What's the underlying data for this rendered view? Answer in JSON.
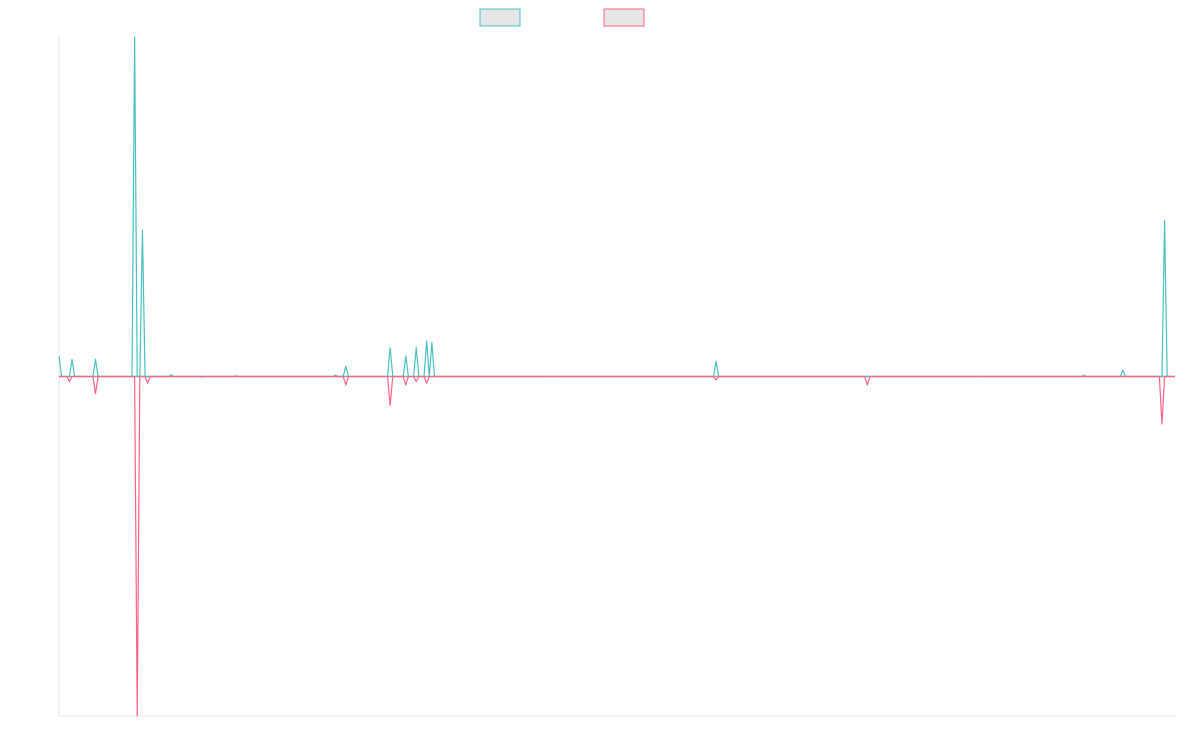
{
  "chart_data": {
    "type": "line",
    "title": "",
    "xlabel": "",
    "ylabel": "",
    "grid": false,
    "legend": "top-center",
    "x": [
      0,
      1,
      2,
      3,
      4,
      5,
      6,
      7,
      8,
      9,
      10,
      11,
      12,
      13,
      14,
      15,
      16,
      17,
      18,
      19,
      20,
      21,
      22,
      23,
      24,
      25,
      26,
      27,
      28,
      29,
      30,
      31,
      32,
      33,
      34,
      35,
      36,
      37,
      38,
      39,
      40,
      41,
      42,
      43,
      44,
      45,
      46,
      47,
      48,
      49,
      50,
      51,
      52,
      53,
      54,
      55,
      56,
      57,
      58,
      59,
      60,
      61,
      62,
      63,
      64,
      65,
      66,
      67,
      68,
      69,
      70,
      71,
      72,
      73,
      74,
      75,
      76,
      77,
      78,
      79,
      80,
      81,
      82,
      83,
      84,
      85,
      86,
      87,
      88,
      89,
      90,
      91,
      92,
      93,
      94,
      95,
      96,
      97,
      98,
      99,
      100,
      101,
      102,
      103,
      104,
      105,
      106,
      107,
      108,
      109,
      110,
      111,
      112,
      113,
      114,
      115,
      116,
      117,
      118,
      119,
      120,
      121,
      122,
      123,
      124,
      125,
      126,
      127,
      128,
      129,
      130,
      131,
      132,
      133,
      134,
      135,
      136,
      137,
      138,
      139,
      140,
      141,
      142,
      143,
      144,
      145,
      146,
      147,
      148,
      149,
      150,
      151,
      152,
      153,
      154,
      155,
      156,
      157,
      158,
      159,
      160,
      161,
      162,
      163,
      164,
      165,
      166,
      167,
      168,
      169,
      170,
      171,
      172,
      173,
      174,
      175,
      176,
      177,
      178,
      179,
      180,
      181,
      182,
      183,
      184,
      185,
      186,
      187,
      188,
      189,
      190,
      191,
      192,
      193,
      194,
      195,
      196,
      197,
      198,
      199,
      200,
      201,
      202,
      203,
      204,
      205,
      206,
      207,
      208,
      209,
      210,
      211,
      212,
      213,
      214,
      215,
      216,
      217,
      218,
      219,
      220,
      221,
      222,
      223,
      224,
      225,
      226,
      227,
      228,
      229,
      230,
      231,
      232,
      233,
      234,
      235,
      236,
      237,
      238,
      239,
      240,
      241,
      242,
      243,
      244,
      245,
      246,
      247,
      248,
      249,
      250,
      251,
      252,
      253,
      254,
      255,
      256,
      257,
      258,
      259,
      260,
      261,
      262,
      263,
      264,
      265,
      266,
      267,
      268,
      269,
      270,
      271,
      272,
      273,
      274,
      275,
      276,
      277,
      278,
      279,
      280,
      281,
      282,
      283,
      284,
      285,
      286,
      287,
      288,
      289,
      290,
      291,
      292,
      293,
      294,
      295,
      296,
      297,
      298,
      299,
      300,
      301,
      302,
      303,
      304,
      305,
      306,
      307,
      308,
      309,
      310,
      311,
      312,
      313,
      314,
      315,
      316,
      317,
      318,
      319,
      320,
      321,
      322,
      323,
      324,
      325,
      326,
      327,
      328,
      329,
      330,
      331,
      332,
      333,
      334,
      335,
      336,
      337,
      338,
      339,
      340,
      341,
      342,
      343,
      344,
      345,
      346,
      347,
      348,
      349,
      350,
      351,
      352,
      353,
      354,
      355,
      356,
      357,
      358,
      359,
      360,
      361,
      362,
      363,
      364,
      365,
      366,
      367,
      368,
      369,
      370,
      371,
      372,
      373,
      374,
      375,
      376,
      377,
      378,
      379,
      380,
      381,
      382,
      383,
      384,
      385,
      386,
      387,
      388,
      389,
      390,
      391,
      392,
      393,
      394,
      395,
      396,
      397,
      398,
      399
    ],
    "xlim": [
      0,
      399
    ],
    "ylim": [
      -1.0,
      1.0
    ],
    "series": [
      {
        "color": "#4bc0c0",
        "legend_fill": "#e6e6e6",
        "peaks": [
          [
            0,
            0.06
          ],
          [
            5,
            0.05
          ],
          [
            14,
            0.05
          ],
          [
            29,
            1.0
          ],
          [
            32,
            0.43
          ],
          [
            43,
            0.005
          ],
          [
            55,
            -0.002
          ],
          [
            68,
            0.002
          ],
          [
            106,
            0.004
          ],
          [
            110,
            0.03
          ],
          [
            127,
            0.085
          ],
          [
            133,
            0.06
          ],
          [
            137,
            0.085
          ],
          [
            141,
            0.105
          ],
          [
            143,
            0.1
          ],
          [
            189,
            0.001
          ],
          [
            252,
            0.045
          ],
          [
            352,
            0.001
          ],
          [
            393,
            0.004
          ],
          [
            408,
            0.018
          ],
          [
            423,
            0.0
          ],
          [
            424,
            0.46
          ]
        ]
      },
      {
        "color": "#ff6384",
        "legend_fill": "#e6e6e6",
        "peaks": [
          [
            4,
            -0.015
          ],
          [
            14,
            -0.05
          ],
          [
            30,
            -1.0
          ],
          [
            34,
            -0.02
          ],
          [
            110,
            -0.025
          ],
          [
            127,
            -0.085
          ],
          [
            133,
            -0.025
          ],
          [
            137,
            -0.015
          ],
          [
            141,
            -0.02
          ],
          [
            252,
            -0.01
          ],
          [
            310,
            -0.025
          ],
          [
            423,
            -0.14
          ]
        ]
      }
    ]
  }
}
